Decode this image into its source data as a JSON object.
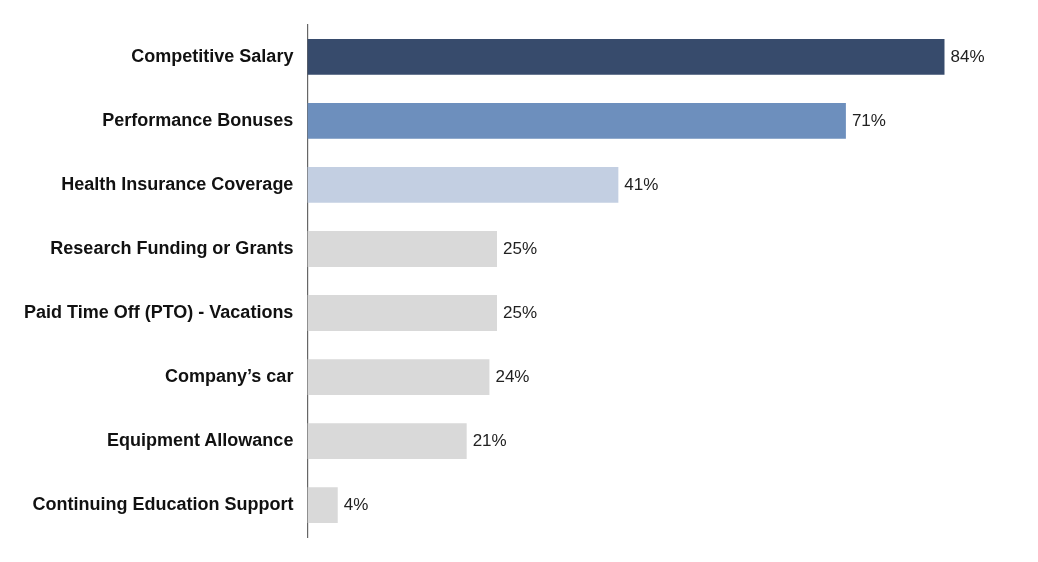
{
  "chart_data": {
    "type": "bar",
    "orientation": "horizontal",
    "categories": [
      "Competitive Salary",
      "Performance Bonuses",
      "Health Insurance Coverage",
      "Research Funding or Grants",
      "Paid Time Off (PTO) - Vacations",
      "Company’s car",
      "Equipment Allowance",
      "Continuing Education Support"
    ],
    "values": [
      84,
      71,
      41,
      25,
      25,
      24,
      21,
      4
    ],
    "colors": [
      "#374b6c",
      "#6d8fbd",
      "#c3cfe2",
      "#d9d9d9",
      "#d9d9d9",
      "#d9d9d9",
      "#d9d9d9",
      "#d9d9d9"
    ],
    "value_labels": [
      "84%",
      "71%",
      "41%",
      "25%",
      "25%",
      "24%",
      "21%",
      "4%"
    ],
    "tick_labels": "y",
    "grid": false,
    "legend": false
  }
}
